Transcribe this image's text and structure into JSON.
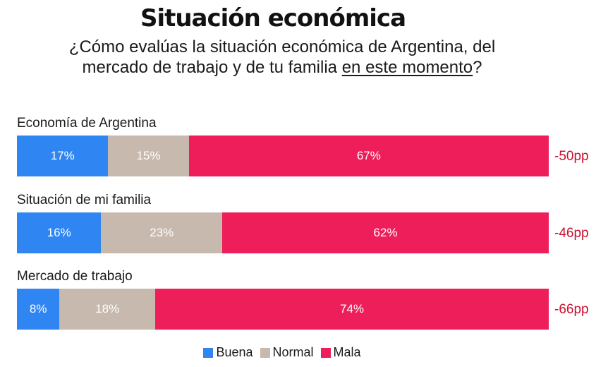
{
  "title": "Situación económica",
  "subtitle": {
    "line1": "¿Cómo evalúas la situación económica de Argentina, del",
    "line2_before": "mercado de trabajo y de tu familia ",
    "line2_underlined": "en este momento",
    "line2_after": "?"
  },
  "colors": {
    "buena": "#2f86f2",
    "normal": "#c7b9ad",
    "mala": "#ed1e5a",
    "diff_text": "#c8102e"
  },
  "chart_data": {
    "type": "bar",
    "orientation": "horizontal",
    "stacked": true,
    "categories": [
      "Economía de Argentina",
      "Situación de mi familia",
      "Mercado de trabajo"
    ],
    "series": [
      {
        "name": "Buena",
        "values": [
          17,
          16,
          8
        ],
        "labels": [
          "17%",
          "16%",
          "8%"
        ]
      },
      {
        "name": "Normal",
        "values": [
          15,
          23,
          18
        ],
        "labels": [
          "15%",
          "23%",
          "18%"
        ]
      },
      {
        "name": "Mala",
        "values": [
          67,
          62,
          74
        ],
        "labels": [
          "67%",
          "62%",
          "74%"
        ]
      }
    ],
    "net_labels": [
      "-50pp",
      "-46pp",
      "-66pp"
    ],
    "legend": {
      "position": "bottom",
      "entries": [
        "Buena",
        "Normal",
        "Mala"
      ]
    },
    "grid": false
  }
}
